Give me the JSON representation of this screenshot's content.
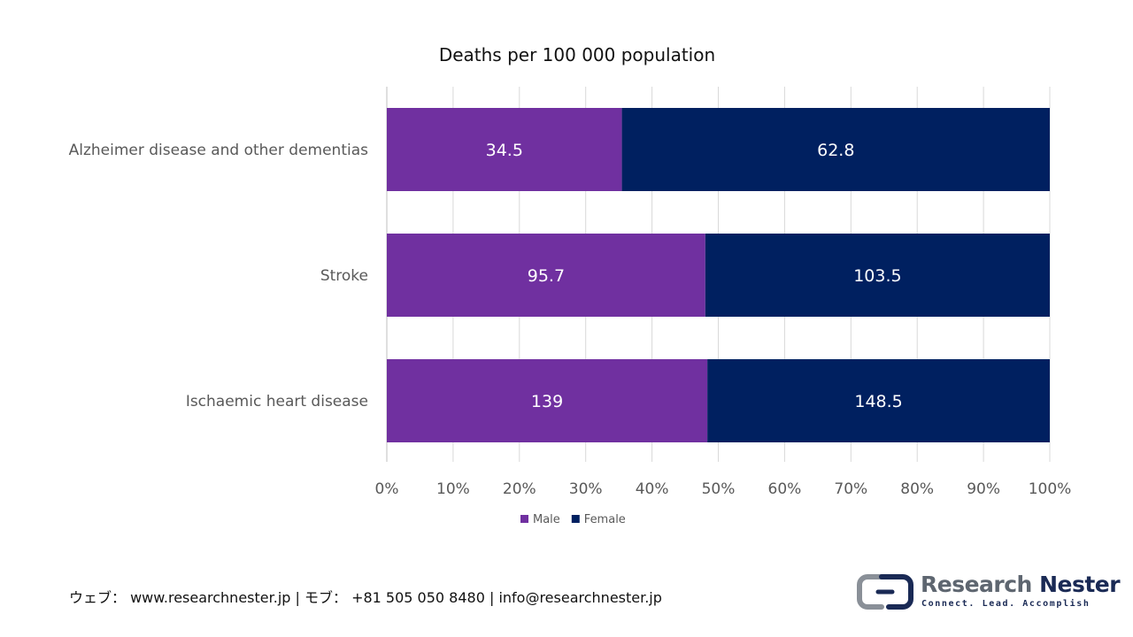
{
  "chart_data": {
    "type": "bar",
    "orientation": "horizontal",
    "stacked": "percent",
    "title": "Deaths per 100 000 population",
    "categories": [
      "Alzheimer disease and other dementias",
      "Stroke",
      "Ischaemic heart disease"
    ],
    "series": [
      {
        "name": "Male",
        "values": [
          34.5,
          95.7,
          139
        ],
        "labels": [
          "34.5",
          "95.7",
          "139"
        ],
        "color": "#7030a0"
      },
      {
        "name": "Female",
        "values": [
          62.8,
          103.5,
          148.5
        ],
        "labels": [
          "62.8",
          "103.5",
          "148.5"
        ],
        "color": "#002060"
      }
    ],
    "xticks": [
      "0%",
      "10%",
      "20%",
      "30%",
      "40%",
      "50%",
      "60%",
      "70%",
      "80%",
      "90%",
      "100%"
    ],
    "xlim": [
      0,
      100
    ],
    "grid": true,
    "legend_position": "bottom"
  },
  "footer": {
    "contact": "ウェブ： www.researchnester.jp | モブ： +81 505 050 8480 | info@researchnester.jp"
  },
  "logo": {
    "name_part1": "Research",
    "name_part2": "Nester",
    "tagline": "Connect. Lead. Accomplish"
  }
}
